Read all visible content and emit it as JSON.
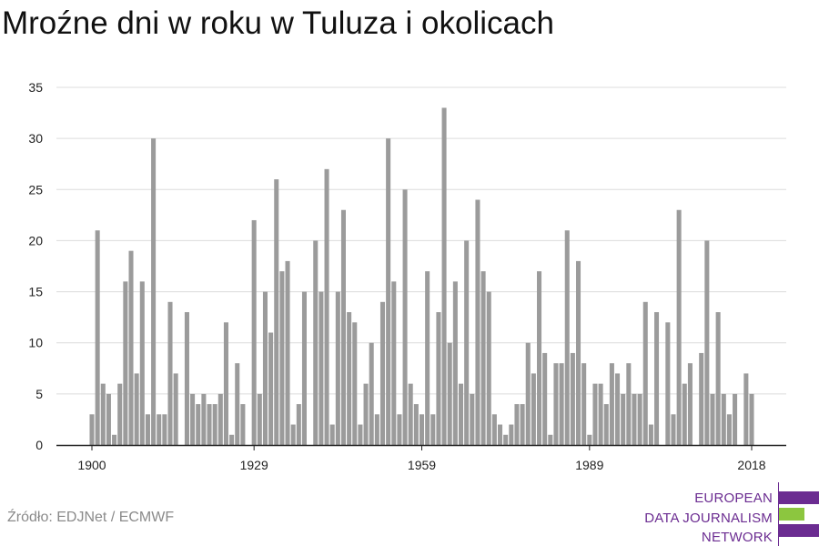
{
  "title": "Mroźne dni w roku w Tuluza i okolicach",
  "source": "Źródło: EDJNet / ECMWF",
  "logo": {
    "lines": [
      "EUROPEAN",
      "DATA JOURNALISM",
      "NETWORK"
    ],
    "colors": [
      "#6b2c91",
      "#8cc63f",
      "#6b2c91"
    ]
  },
  "colors": {
    "bar": "#9b9b9b",
    "grid": "#dcdcdc",
    "axis": "#222222"
  },
  "chart_data": {
    "type": "bar",
    "title": "Mroźne dni w roku w Tuluza i okolicach",
    "xlabel": "",
    "ylabel": "",
    "x_start": 1900,
    "x_end": 2018,
    "xticks": [
      1900,
      1929,
      1959,
      1989,
      2018
    ],
    "yticks": [
      0,
      5,
      10,
      15,
      20,
      25,
      30,
      35
    ],
    "ylim": [
      0,
      35
    ],
    "grid": true,
    "series": [
      {
        "values": [
          3,
          21,
          6,
          5,
          1,
          6,
          16,
          19,
          7,
          16,
          3,
          30,
          3,
          3,
          14,
          7,
          0,
          13,
          5,
          4,
          5,
          4,
          4,
          5,
          12,
          1,
          8,
          4,
          0,
          22,
          5,
          15,
          11,
          26,
          17,
          18,
          2,
          4,
          15,
          0,
          20,
          15,
          27,
          2,
          15,
          23,
          13,
          12,
          2,
          6,
          10,
          3,
          14,
          30,
          16,
          3,
          25,
          6,
          4,
          3,
          17,
          3,
          13,
          33,
          10,
          16,
          6,
          20,
          5,
          24,
          17,
          15,
          3,
          2,
          1,
          2,
          4,
          4,
          10,
          7,
          17,
          9,
          1,
          8,
          8,
          21,
          9,
          18,
          8,
          1,
          6,
          6,
          4,
          8,
          7,
          5,
          8,
          5,
          5,
          14,
          2,
          13,
          0,
          12,
          3,
          23,
          6,
          8,
          0,
          9,
          20,
          5,
          13,
          5,
          3,
          5,
          0,
          7,
          5
        ]
      }
    ]
  }
}
